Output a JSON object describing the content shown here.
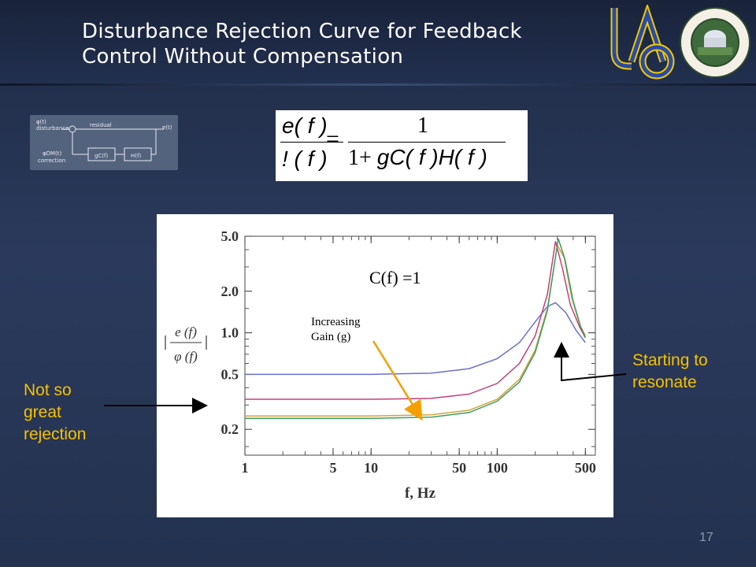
{
  "slide": {
    "title_line1": "Disturbance Rejection Curve for Feedback",
    "title_line2": "Control Without Compensation",
    "page_number": "17"
  },
  "logos": {
    "uc_logo_icon": "uc-lao-logo",
    "seal_icon": "lick-observatory-seal",
    "seal_text_top": "LICK OBSERVATORY",
    "seal_text_bottom": "MOUNT HAMILTON",
    "seal_year": "1888"
  },
  "block_diagram": {
    "input_label": "φ(t)",
    "input_sublabel": "disturbance",
    "residual_label": "residual",
    "output_label": "e(t)",
    "correction_label": "φDM(t)",
    "correction_sublabel": "correction",
    "block1": "gC(f)",
    "block2": "H(f)"
  },
  "equation": {
    "lhs_numerator": "e( f )",
    "lhs_denominator": "! ( f )",
    "equals": "=",
    "rhs_numerator": "1",
    "rhs_denominator_pre": "1+ ",
    "rhs_denominator_mid": "gC( f )H",
    "rhs_denominator_post": "( f )"
  },
  "annotations": {
    "left_note": "Not so great rejection",
    "right_note": "Starting to resonate",
    "arrow_color": "#000000"
  },
  "colors": {
    "note": "#f5c000",
    "arrow_gain": "#f5a000"
  },
  "chart_data": {
    "type": "line",
    "xlabel": "f, Hz",
    "ylabel_numerator": "e (f)",
    "ylabel_denominator": "φ (f)",
    "x_scale": "log",
    "y_scale": "log",
    "xlim": [
      1,
      600
    ],
    "ylim": [
      0.13,
      5.0
    ],
    "x_ticks": [
      1,
      5,
      10,
      50,
      100,
      500
    ],
    "y_ticks": [
      0.2,
      0.5,
      1.0,
      2.0,
      5.0
    ],
    "y_tick_labels": [
      "0.2",
      "0.5",
      "1.0",
      "2.0",
      "5.0"
    ],
    "plot_annotation": "C(f) =1",
    "gain_annotation_line1": "Increasing",
    "gain_annotation_line2": "Gain (g)",
    "series": [
      {
        "color": "#6a6fd0",
        "x": [
          1,
          10,
          30,
          60,
          100,
          150,
          200,
          250,
          290,
          350,
          420,
          500
        ],
        "y": [
          0.5,
          0.5,
          0.51,
          0.55,
          0.65,
          0.85,
          1.2,
          1.55,
          1.65,
          1.4,
          1.05,
          0.85
        ]
      },
      {
        "color": "#c2407a",
        "x": [
          1,
          10,
          30,
          60,
          100,
          150,
          200,
          250,
          290,
          330,
          380,
          450,
          500
        ],
        "y": [
          0.33,
          0.33,
          0.335,
          0.36,
          0.43,
          0.6,
          0.95,
          1.9,
          4.6,
          2.9,
          1.6,
          1.1,
          0.92
        ]
      },
      {
        "color": "#d6a23a",
        "x": [
          1,
          10,
          30,
          60,
          100,
          150,
          200,
          250,
          300,
          340,
          390,
          450,
          500
        ],
        "y": [
          0.25,
          0.25,
          0.255,
          0.275,
          0.33,
          0.46,
          0.75,
          1.5,
          4.3,
          3.5,
          1.8,
          1.15,
          0.95
        ]
      },
      {
        "color": "#3aa060",
        "x": [
          1,
          10,
          30,
          60,
          100,
          150,
          200,
          250,
          305,
          345,
          400,
          460,
          500
        ],
        "y": [
          0.24,
          0.24,
          0.245,
          0.265,
          0.32,
          0.44,
          0.72,
          1.45,
          4.8,
          3.4,
          1.7,
          1.1,
          0.93
        ]
      }
    ]
  }
}
